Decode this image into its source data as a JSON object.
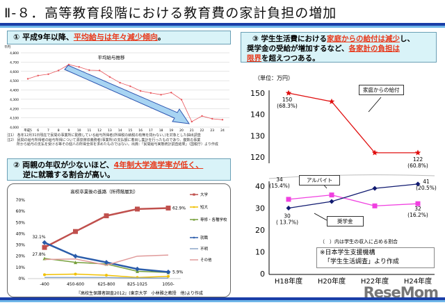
{
  "title": "Ⅱ-８．高等教育段階における教育費の家計負担の増加",
  "section1": {
    "num": "①",
    "pre": "平成9年以降、",
    "hl": "平均給与は年々減少傾向",
    "post": "。",
    "notes": [
      "注1） 各年12月31日現在で民間の事業所に勤務している給与所得者(所得税の納税の有無を問わない。)を対象とした抽出調査",
      "注2） 民間の給与所得者の給与所得について源泉徴収義務者(事業所)の支払額に着目し集計を行ったものであり、複数の事業",
      "所から給与の支払を受ける等その個人の所得全体を求めたものではない。出典：「民間給与実態統計調査結果」（国税庁）より作成"
    ]
  },
  "section2": {
    "num": "②",
    "pre": "両親の年収が少ないほど、",
    "hl": "4年制大学進学率が低く、",
    "line2": "逆に就職する割合が高い。",
    "source": "『高校生保護者調査2012』(東京大学　小林雅之教授　他)より作成"
  },
  "section3": {
    "num": "③",
    "l1a": "学生生活費における",
    "l1hl": "家庭からの給付は減少",
    "l1b": "し、",
    "l2a": "奨学金の受給が増加するなど、",
    "l2hl": "各家計の負担は",
    "l3hl": "限界",
    "l3b": "を超えつつある。",
    "unit": "（単位：万円）",
    "callout_family": "家庭からの給付",
    "callout_arbeit": "アルバイト",
    "callout_scholar": "奨学金",
    "paren_note": "（　）内は学生の収入に占める割合",
    "source_l1": "※日本学生支援機構",
    "source_l2": "「学生生活調査」より作成"
  },
  "watermark": "ReseMom",
  "chart_data": [
    {
      "type": "line",
      "title": "平均給与推移",
      "ylabel": "千円",
      "ylim": [
        4000,
        4800
      ],
      "yticks": [
        "4,000",
        "4,100",
        "4,200",
        "4,300",
        "4,400",
        "4,500",
        "4,600",
        "4,700",
        "4,800"
      ],
      "categories": [
        "平成5",
        "6",
        "7",
        "8",
        "9",
        "10",
        "11",
        "12",
        "13",
        "14",
        "15",
        "16",
        "17",
        "18",
        "19",
        "20",
        "21",
        "22",
        "23",
        "24"
      ],
      "values": [
        4520,
        4555,
        4570,
        4610,
        4673,
        4648,
        4613,
        4610,
        4540,
        4478,
        4440,
        4390,
        4368,
        4349,
        4372,
        4296,
        4059,
        4120,
        4090,
        4080
      ],
      "color": "#e8545a",
      "grid": true
    },
    {
      "type": "line",
      "title": "高校卒業後の進路（所得階層別）",
      "ylim": [
        0,
        70
      ],
      "yticks": [
        "0%",
        "10%",
        "20%",
        "30%",
        "40%",
        "50%",
        "60%",
        "70%"
      ],
      "categories": [
        "-400",
        "450-600",
        "625-800",
        "825-1025",
        "1050-"
      ],
      "legend": "right",
      "series": [
        {
          "name": "大学",
          "values": [
            27.8,
            42,
            56,
            62,
            62.9
          ],
          "color": "#c0504d",
          "marker": "square",
          "labels": [
            "27.8%",
            "",
            "",
            "",
            "62.9%"
          ]
        },
        {
          "name": "短大",
          "values": [
            3.5,
            4,
            3,
            1,
            2
          ],
          "color": "#f0c000",
          "marker": "circle"
        },
        {
          "name": "専修・各種学校",
          "values": [
            18,
            14.5,
            13,
            6.5,
            5.5
          ],
          "color": "#77a03c",
          "marker": "triangle"
        },
        {
          "name": "就職",
          "values": [
            32.1,
            20,
            14.5,
            8.5,
            5.9
          ],
          "color": "#2a5caa",
          "marker": "diamond",
          "labels": [
            "32.1%",
            "",
            "",
            "",
            "5.9%"
          ]
        },
        {
          "name": "不明",
          "values": [
            1,
            1,
            1,
            0.5,
            0.5
          ],
          "color": "#8aa6c8",
          "marker": "none"
        },
        {
          "name": "その他",
          "values": [
            17,
            17.5,
            12,
            20,
            21
          ],
          "color": "#e09a9a",
          "marker": "none"
        }
      ]
    },
    {
      "type": "line",
      "categories": [
        "H18年度",
        "H20年度",
        "H22年度",
        "H24年度"
      ],
      "yticks_upper": [
        "120",
        "130",
        "140",
        "150"
      ],
      "yticks_lower": [
        "0",
        "10",
        "20",
        "30",
        "40"
      ],
      "series": [
        {
          "name": "家庭からの給付",
          "values": [
            150,
            146,
            122,
            122
          ],
          "color": "#e01010",
          "marker": "star",
          "labels": [
            "150\n(68.3%)",
            "",
            "",
            "122\n(60.8%)"
          ]
        },
        {
          "name": "アルバイト",
          "values": [
            34,
            36,
            31,
            32
          ],
          "color": "#f040e0",
          "marker": "square",
          "labels": [
            "34\n(15.4%)",
            "",
            "",
            "32\n(16.2%)"
          ]
        },
        {
          "name": "奨学金",
          "values": [
            30,
            33,
            39,
            41
          ],
          "color": "#101a70",
          "marker": "diamond",
          "labels": [
            "30\n( 13.7%)",
            "",
            "",
            "41\n(20.5%)"
          ]
        }
      ]
    }
  ]
}
